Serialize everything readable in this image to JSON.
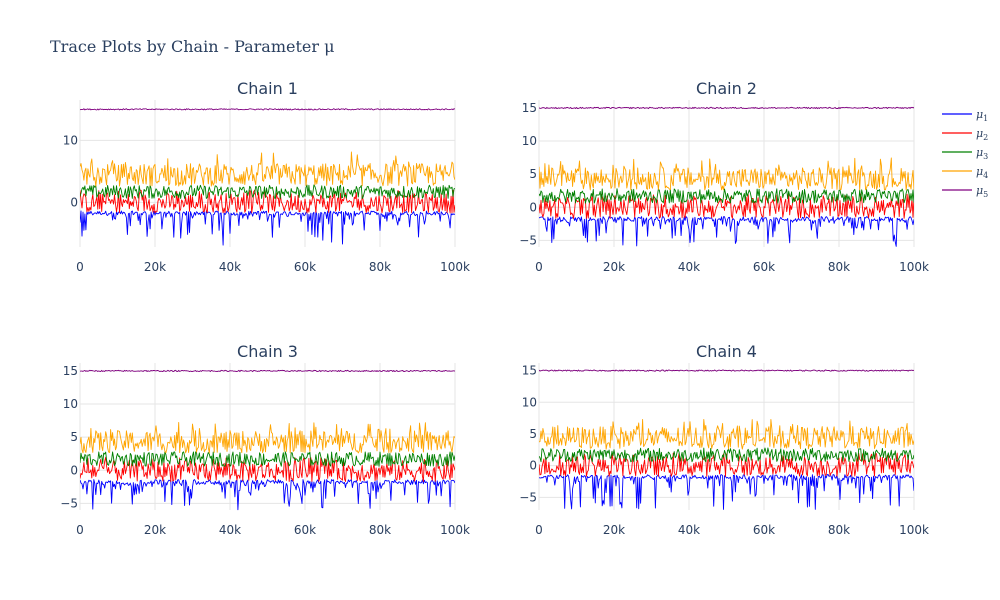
{
  "chart_data": {
    "type": "line",
    "title": "Trace Plots by Chain - Parameter μ",
    "legend_position": "right",
    "series_styles": [
      {
        "name": "μ1",
        "sym": "μ",
        "sub": "1",
        "color": "#0000ff"
      },
      {
        "name": "μ2",
        "sym": "μ",
        "sub": "2",
        "color": "#ff0000"
      },
      {
        "name": "μ3",
        "sym": "μ",
        "sub": "3",
        "color": "#008000"
      },
      {
        "name": "μ4",
        "sym": "μ",
        "sub": "4",
        "color": "#ffa500"
      },
      {
        "name": "μ5",
        "sym": "μ",
        "sub": "5",
        "color": "#800080"
      }
    ],
    "x_ticks": [
      0,
      20000,
      40000,
      60000,
      80000,
      100000
    ],
    "x_tick_labels": [
      "0",
      "20k",
      "40k",
      "60k",
      "80k",
      "100k"
    ],
    "xlim": [
      0,
      100000
    ],
    "grid": true,
    "panels": [
      {
        "title": "Chain 1",
        "ylim": [
          -7.2,
          16.5
        ],
        "y_ticks": [
          0,
          10
        ],
        "y_tick_labels": [
          "0",
          "10"
        ],
        "series": [
          {
            "name": "μ1",
            "band": [
              -2.0,
              -1.4
            ],
            "dip_min": -7.0
          },
          {
            "name": "μ2",
            "band": [
              -1.7,
              1.5
            ],
            "spike_max": 2.0
          },
          {
            "name": "μ3",
            "band": [
              0.6,
              2.8
            ]
          },
          {
            "name": "μ4",
            "band": [
              2.6,
              6.3
            ],
            "spike_max": 8.2
          },
          {
            "name": "μ5",
            "band": [
              14.9,
              15.1
            ]
          }
        ]
      },
      {
        "title": "Chain 2",
        "ylim": [
          -6.0,
          16.2
        ],
        "y_ticks": [
          -5,
          0,
          5,
          10,
          15
        ],
        "y_tick_labels": [
          "−5",
          "0",
          "5",
          "10",
          "15"
        ],
        "series": [
          {
            "name": "μ1",
            "band": [
              -2.0,
              -1.4
            ],
            "dip_min": -6.0
          },
          {
            "name": "μ2",
            "band": [
              -1.7,
              1.5
            ],
            "spike_max": 2.0
          },
          {
            "name": "μ3",
            "band": [
              0.6,
              2.8
            ]
          },
          {
            "name": "μ4",
            "band": [
              2.6,
              6.0
            ],
            "spike_max": 7.5
          },
          {
            "name": "μ5",
            "band": [
              14.9,
              15.1
            ]
          }
        ]
      },
      {
        "title": "Chain 3",
        "ylim": [
          -6.0,
          16.2
        ],
        "y_ticks": [
          -5,
          0,
          5,
          10,
          15
        ],
        "y_tick_labels": [
          "−5",
          "0",
          "5",
          "10",
          "15"
        ],
        "series": [
          {
            "name": "μ1",
            "band": [
              -2.0,
              -1.4
            ],
            "dip_min": -6.0
          },
          {
            "name": "μ2",
            "band": [
              -1.7,
              1.5
            ],
            "spike_max": 2.0
          },
          {
            "name": "μ3",
            "band": [
              0.6,
              2.8
            ]
          },
          {
            "name": "μ4",
            "band": [
              2.6,
              6.0
            ],
            "spike_max": 7.3
          },
          {
            "name": "μ5",
            "band": [
              14.9,
              15.1
            ]
          }
        ]
      },
      {
        "title": "Chain 4",
        "ylim": [
          -7.0,
          16.2
        ],
        "y_ticks": [
          -5,
          0,
          5,
          10,
          15
        ],
        "y_tick_labels": [
          "−5",
          "0",
          "5",
          "10",
          "15"
        ],
        "series": [
          {
            "name": "μ1",
            "band": [
              -2.0,
              -1.4
            ],
            "dip_min": -7.0
          },
          {
            "name": "μ2",
            "band": [
              -1.7,
              1.5
            ],
            "spike_max": 2.0
          },
          {
            "name": "μ3",
            "band": [
              0.6,
              2.8
            ]
          },
          {
            "name": "μ4",
            "band": [
              2.6,
              6.2
            ],
            "spike_max": 7.3
          },
          {
            "name": "μ5",
            "band": [
              14.9,
              15.1
            ]
          }
        ]
      }
    ]
  }
}
